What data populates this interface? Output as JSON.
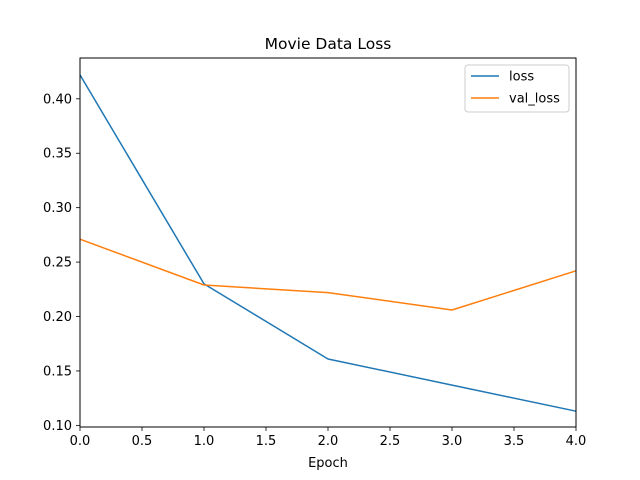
{
  "chart_data": {
    "type": "line",
    "title": "Movie Data Loss",
    "xlabel": "Epoch",
    "ylabel": "",
    "x": [
      0,
      1,
      2,
      3,
      4
    ],
    "xlim": [
      0,
      4
    ],
    "ylim": [
      0.0985,
      0.4375
    ],
    "xticks": [
      0.0,
      0.5,
      1.0,
      1.5,
      2.0,
      2.5,
      3.0,
      3.5,
      4.0
    ],
    "xtick_labels": [
      "0.0",
      "0.5",
      "1.0",
      "1.5",
      "2.0",
      "2.5",
      "3.0",
      "3.5",
      "4.0"
    ],
    "yticks": [
      0.1,
      0.15,
      0.2,
      0.25,
      0.3,
      0.35,
      0.4
    ],
    "ytick_labels": [
      "0.10",
      "0.15",
      "0.20",
      "0.25",
      "0.30",
      "0.35",
      "0.40"
    ],
    "grid": false,
    "legend_position": "top-right",
    "series": [
      {
        "name": "loss",
        "color": "#1f77b4",
        "values": [
          0.422,
          0.23,
          0.161,
          0.137,
          0.113
        ]
      },
      {
        "name": "val_loss",
        "color": "#ff7f0e",
        "values": [
          0.271,
          0.229,
          0.222,
          0.206,
          0.242
        ]
      }
    ]
  }
}
